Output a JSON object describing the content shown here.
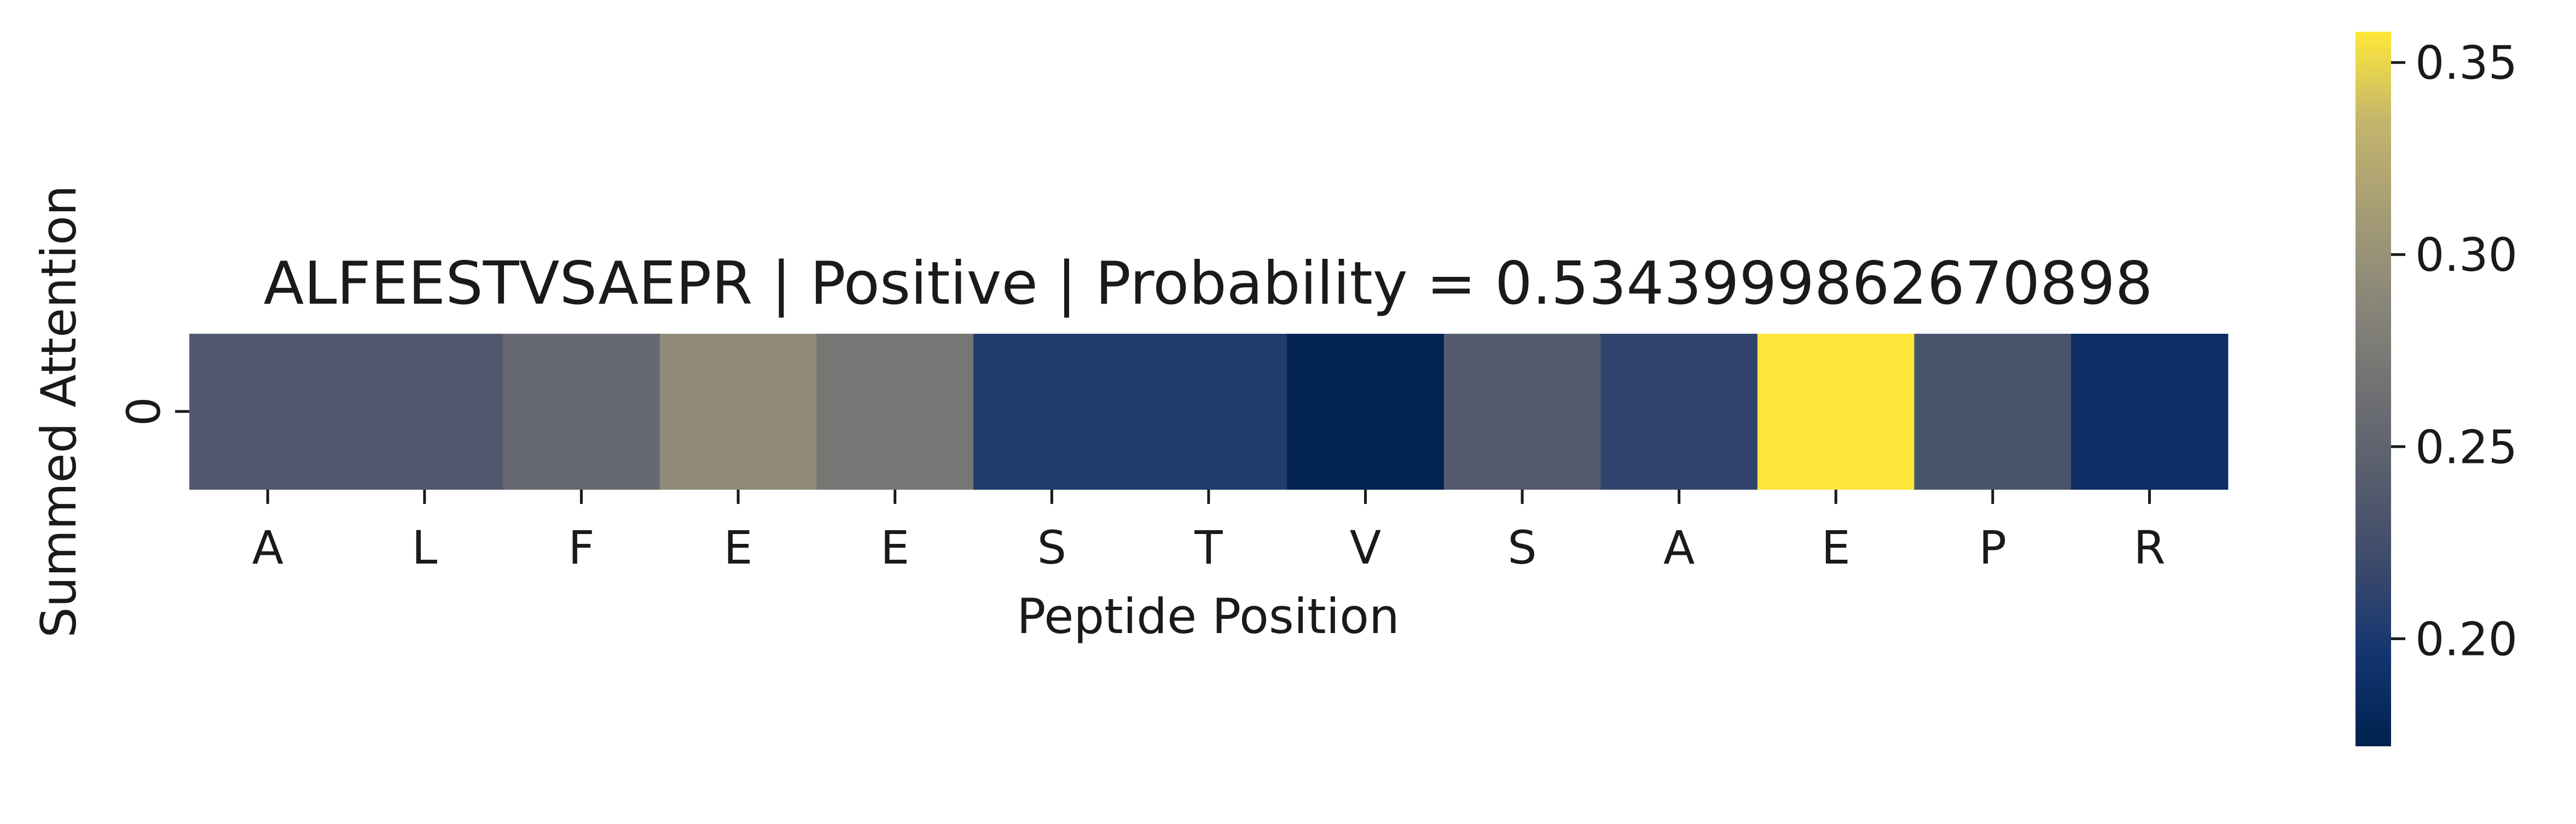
{
  "chart_data": {
    "type": "heatmap",
    "title": "ALFEESTVSAEPR | Positive | Probability = 0.5343999862670898",
    "xlabel": "Peptide Position",
    "ylabel": "Summed Attention",
    "x_categories": [
      "A",
      "L",
      "F",
      "E",
      "E",
      "S",
      "T",
      "V",
      "S",
      "A",
      "E",
      "P",
      "R"
    ],
    "y_categories": [
      "0"
    ],
    "values": [
      [
        0.236,
        0.236,
        0.256,
        0.293,
        0.27,
        0.203,
        0.203,
        0.175,
        0.239,
        0.213,
        0.357,
        0.231,
        0.187
      ]
    ],
    "colormap": "cividis",
    "colorbar": {
      "range": [
        0.172,
        0.358
      ],
      "ticks": [
        0.2,
        0.25,
        0.3,
        0.35
      ],
      "tick_labels": [
        "0.20",
        "0.25",
        "0.30",
        "0.35"
      ]
    }
  }
}
